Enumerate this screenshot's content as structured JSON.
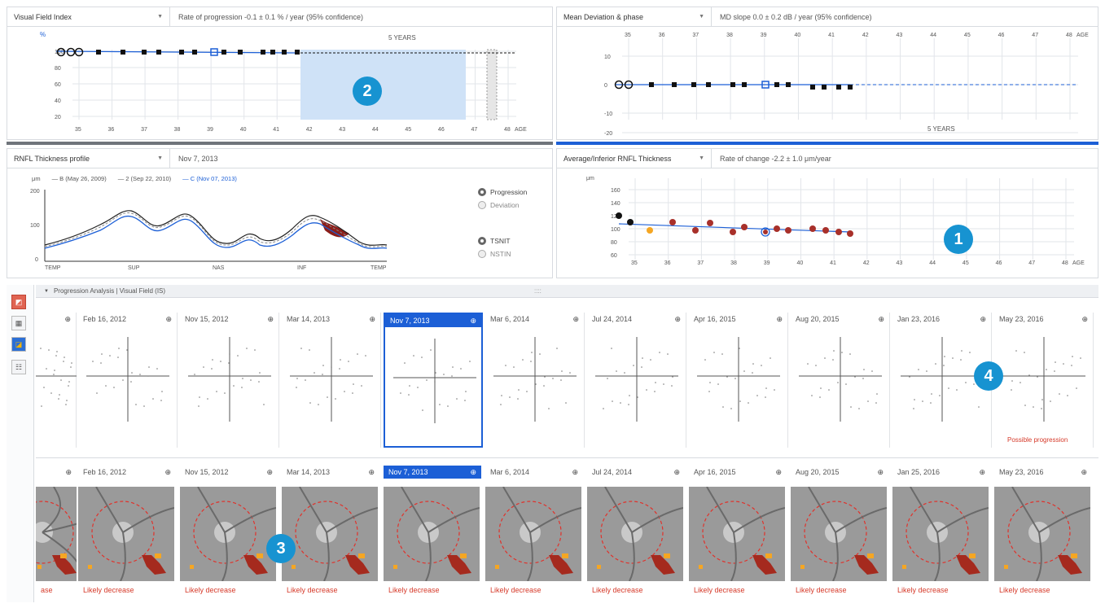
{
  "vf_panel": {
    "metric": "Visual Field Index",
    "rate": "Rate of progression -0.1 ± 0.1 % / year (95% confidence)",
    "ylabel": "%",
    "yticks": [
      "100",
      "80",
      "60",
      "40",
      "20"
    ],
    "xticks": [
      "35",
      "36",
      "37",
      "38",
      "39",
      "40",
      "41",
      "42",
      "43",
      "44",
      "45",
      "46",
      "47",
      "48"
    ],
    "xunit": "AGE",
    "years_label": "5 YEARS"
  },
  "md_panel": {
    "metric": "Mean Deviation & phase",
    "rate": "MD slope 0.0 ± 0.2 dB / year (95% confidence)",
    "yticks": [
      "10",
      "0",
      "-10",
      "-20"
    ],
    "xticks": [
      "35",
      "36",
      "37",
      "38",
      "39",
      "40",
      "41",
      "42",
      "43",
      "44",
      "45",
      "46",
      "47",
      "48"
    ],
    "xunit": "AGE",
    "years_label": "5 YEARS"
  },
  "rnfl_panel": {
    "metric": "RNFL Thickness profile",
    "date": "Nov 7, 2013",
    "legend": [
      "μm",
      "— B (May 26, 2009)",
      "— 2 (Sep 22, 2010)",
      "— C (Nov 07, 2013)"
    ],
    "yticks": [
      "200",
      "100",
      "0"
    ],
    "xticks": [
      "TEMP",
      "SUP",
      "NAS",
      "INF",
      "TEMP"
    ],
    "toggle1": [
      "Progression",
      "Deviation"
    ],
    "toggle2": [
      "TSNIT",
      "NSTIN"
    ]
  },
  "avg_panel": {
    "metric": "Average/Inferior RNFL Thickness",
    "rate": "Rate of change -2.2 ± 1.0 μm/year",
    "yticks": [
      "160",
      "140",
      "120",
      "100",
      "80",
      "60"
    ],
    "ylabel": "μm",
    "xticks": [
      "35",
      "36",
      "37",
      "38",
      "39",
      "40",
      "41",
      "42",
      "43",
      "44",
      "45",
      "46",
      "47",
      "48"
    ],
    "xunit": "AGE"
  },
  "progression": {
    "title": "Progression Analysis | Visual Field (IS)",
    "handle": "::::"
  },
  "vf_cards": [
    {
      "date": ""
    },
    {
      "date": "Feb 16, 2012"
    },
    {
      "date": "Nov 15, 2012"
    },
    {
      "date": "Mar 14, 2013"
    },
    {
      "date": "Nov 7, 2013"
    },
    {
      "date": "Mar 6, 2014"
    },
    {
      "date": "Jul 24, 2014"
    },
    {
      "date": "Apr 16, 2015"
    },
    {
      "date": "Aug 20, 2015"
    },
    {
      "date": "Jan 23, 2016"
    },
    {
      "date": "May 23, 2016",
      "status": "Possible progression"
    }
  ],
  "oct_cards": [
    {
      "date": "",
      "status": "ase"
    },
    {
      "date": "Feb 16, 2012",
      "status": "Likely decrease"
    },
    {
      "date": "Nov 15, 2012",
      "status": "Likely decrease"
    },
    {
      "date": "Mar 14, 2013",
      "status": "Likely decrease"
    },
    {
      "date": "Nov 7, 2013",
      "status": "Likely decrease"
    },
    {
      "date": "Mar 6, 2014",
      "status": "Likely decrease"
    },
    {
      "date": "Jul 24, 2014",
      "status": "Likely decrease"
    },
    {
      "date": "Apr 16, 2015",
      "status": "Likely decrease"
    },
    {
      "date": "Aug 20, 2015",
      "status": "Likely decrease"
    },
    {
      "date": "Jan 25, 2016",
      "status": "Likely decrease"
    },
    {
      "date": "May 23, 2016",
      "status": "Likely decrease"
    }
  ],
  "badges": {
    "one": "1",
    "two": "2",
    "three": "3",
    "four": "4"
  },
  "icons": {
    "zoom": "⊕",
    "caret": "▼",
    "tool1": "◩",
    "tool2": "▦",
    "tool3": "◪",
    "tool4": "☷"
  },
  "colors": {
    "accent": "#1c5fd6",
    "badge": "#1793d1",
    "decrease": "#d63a2a",
    "projection": "#cfe2f7"
  }
}
